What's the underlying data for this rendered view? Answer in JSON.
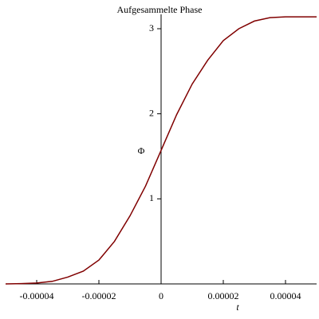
{
  "chart_data": {
    "type": "line",
    "title": "Aufgesammelte Phase",
    "x_label": "t",
    "y_label": "Φ",
    "x": [
      -5e-05,
      -4.5e-05,
      -4e-05,
      -3.5e-05,
      -3e-05,
      -2.5e-05,
      -2e-05,
      -1.5e-05,
      -1e-05,
      -5e-06,
      0,
      5e-06,
      1e-05,
      1.5e-05,
      2e-05,
      2.5e-05,
      3e-05,
      3.5e-05,
      4e-05,
      4.5e-05,
      5e-05
    ],
    "series": [
      {
        "color": "#800000",
        "values": [
          0,
          0.003,
          0.01,
          0.03,
          0.08,
          0.15,
          0.28,
          0.5,
          0.8,
          1.15,
          1.57,
          1.99,
          2.35,
          2.63,
          2.86,
          3.0,
          3.09,
          3.13,
          3.14,
          3.14,
          3.14
        ]
      }
    ],
    "xlim": [
      -5e-05,
      5e-05
    ],
    "xticks": [
      -4e-05,
      -2e-05,
      0,
      2e-05,
      4e-05
    ],
    "ylim": [
      0,
      3.15
    ],
    "yticks": [
      1,
      2,
      3
    ]
  }
}
